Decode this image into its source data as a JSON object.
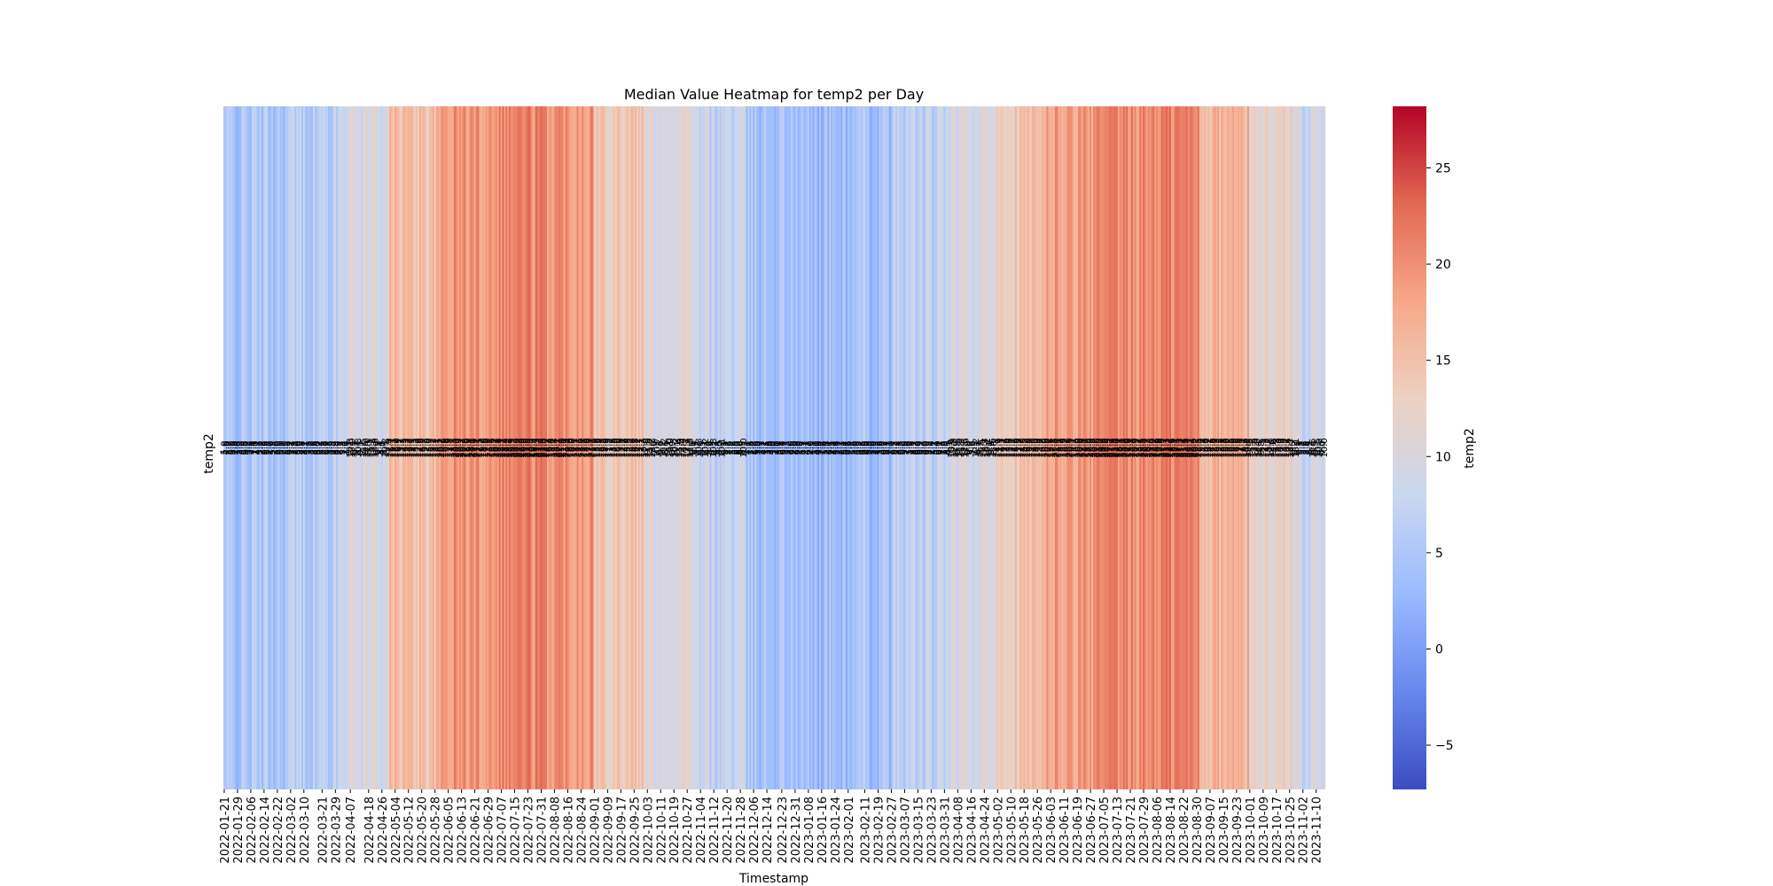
{
  "chart_data": {
    "type": "heatmap",
    "title": "Median Value Heatmap for temp2 per Day",
    "xlabel": "Timestamp",
    "ylabel": "temp2",
    "colorbar_label": "temp2",
    "colormap": "coolwarm",
    "colormap_colors": [
      "#3b4cc0",
      "#6788ee",
      "#9abbff",
      "#c9d7f0",
      "#edd1c2",
      "#f7a889",
      "#e26952",
      "#b40426"
    ],
    "vmin": -7.3,
    "vmax": 28.2,
    "colorbar_ticks": [
      -5,
      0,
      5,
      10,
      15,
      20,
      25
    ],
    "rows": [
      "temp2"
    ],
    "x_start": "2022-01-21",
    "x_end": "2023-11-15",
    "annotations_shown": true,
    "x_tick_labels": [
      "2022-01-21",
      "2022-01-29",
      "2022-02-06",
      "2022-02-14",
      "2022-02-22",
      "2022-03-02",
      "2022-03-10",
      "2022-03-21",
      "2022-03-29",
      "2022-04-07",
      "2022-04-18",
      "2022-04-26",
      "2022-05-04",
      "2022-05-12",
      "2022-05-20",
      "2022-05-28",
      "2022-06-05",
      "2022-06-13",
      "2022-06-21",
      "2022-06-29",
      "2022-07-07",
      "2022-07-15",
      "2022-07-23",
      "2022-07-31",
      "2022-08-08",
      "2022-08-16",
      "2022-08-24",
      "2022-09-01",
      "2022-09-09",
      "2022-09-17",
      "2022-09-25",
      "2022-10-03",
      "2022-10-11",
      "2022-10-19",
      "2022-10-27",
      "2022-11-04",
      "2022-11-12",
      "2022-11-20",
      "2022-11-28",
      "2022-12-06",
      "2022-12-14",
      "2022-12-23",
      "2022-12-31",
      "2023-01-08",
      "2023-01-16",
      "2023-01-24",
      "2023-02-01",
      "2023-02-11",
      "2023-02-19",
      "2023-02-27",
      "2023-03-07",
      "2023-03-15",
      "2023-03-23",
      "2023-03-31",
      "2023-04-08",
      "2023-04-16",
      "2023-04-24",
      "2023-05-02",
      "2023-05-10",
      "2023-05-18",
      "2023-05-26",
      "2023-06-03",
      "2023-06-11",
      "2023-06-19",
      "2023-06-27",
      "2023-07-05",
      "2023-07-13",
      "2023-07-21",
      "2023-07-29",
      "2023-08-06",
      "2023-08-14",
      "2023-08-22",
      "2023-08-30",
      "2023-09-07",
      "2023-09-15",
      "2023-09-23",
      "2023-10-01",
      "2023-10-09",
      "2023-10-17",
      "2023-10-25",
      "2023-11-02",
      "2023-11-10"
    ],
    "monthly_median_pattern": [
      {
        "month": "2022-01",
        "value": 4.5
      },
      {
        "month": "2022-02",
        "value": 5.0
      },
      {
        "month": "2022-03",
        "value": 6.0
      },
      {
        "month": "2022-04",
        "value": 10.0
      },
      {
        "month": "2022-05",
        "value": 15.5
      },
      {
        "month": "2022-06",
        "value": 19.5
      },
      {
        "month": "2022-07",
        "value": 21.0
      },
      {
        "month": "2022-08",
        "value": 20.0
      },
      {
        "month": "2022-09",
        "value": 14.5
      },
      {
        "month": "2022-10",
        "value": 10.5
      },
      {
        "month": "2022-11",
        "value": 7.5
      },
      {
        "month": "2022-12",
        "value": 4.5
      },
      {
        "month": "2023-01",
        "value": 3.5
      },
      {
        "month": "2023-02",
        "value": 4.0
      },
      {
        "month": "2023-03",
        "value": 6.5
      },
      {
        "month": "2023-04",
        "value": 9.5
      },
      {
        "month": "2023-05",
        "value": 14.5
      },
      {
        "month": "2023-06",
        "value": 18.5
      },
      {
        "month": "2023-07",
        "value": 20.0
      },
      {
        "month": "2023-08",
        "value": 21.0
      },
      {
        "month": "2023-09",
        "value": 16.5
      },
      {
        "month": "2023-10",
        "value": 12.0
      },
      {
        "month": "2023-11",
        "value": 8.5
      }
    ]
  }
}
